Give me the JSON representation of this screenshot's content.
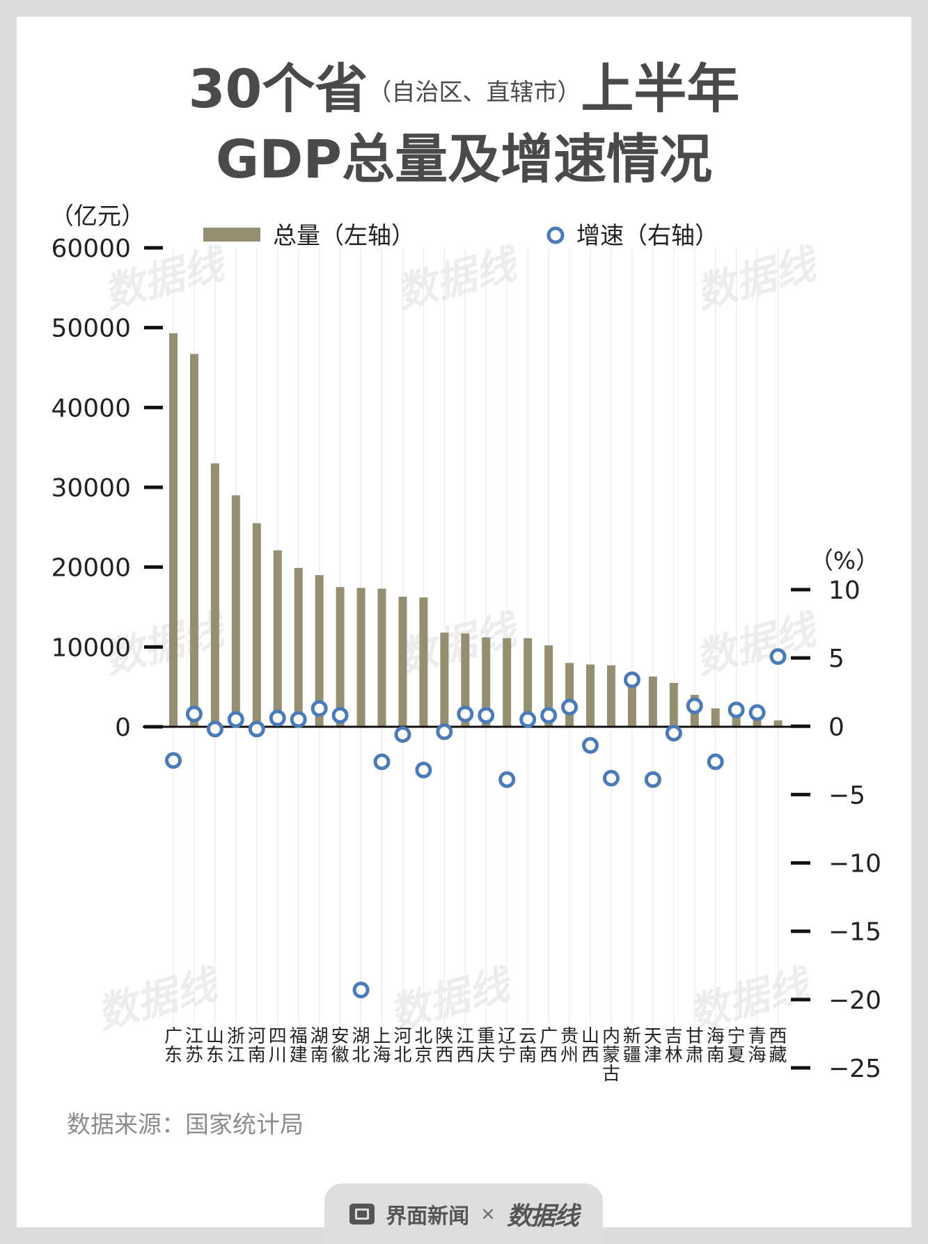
{
  "title": {
    "line1_main": "30个省",
    "line1_sub": "（自治区、直辖市）",
    "line1_tail": "上半年",
    "line2": "GDP总量及增速情况"
  },
  "source": "数据来源：国家统计局",
  "footer": {
    "brand1": "界面新闻",
    "times": "×",
    "brand2": "数据线"
  },
  "watermark": "数据线",
  "colors": {
    "bar": "#958f72",
    "dot": "#4a7ab8",
    "grid": "#e6e6e6",
    "axis": "#111111"
  },
  "chart_data": {
    "type": "bar+scatter",
    "categories": [
      "广东",
      "江苏",
      "山东",
      "浙江",
      "河南",
      "四川",
      "福建",
      "湖南",
      "安徽",
      "湖北",
      "上海",
      "河北",
      "北京",
      "陕西",
      "江西",
      "重庆",
      "辽宁",
      "云南",
      "广西",
      "贵州",
      "山西",
      "内蒙古",
      "新疆",
      "天津",
      "吉林",
      "甘肃",
      "海南",
      "宁夏",
      "青海",
      "西藏"
    ],
    "series": [
      {
        "name": "总量（左轴）",
        "axis": "left",
        "unit": "亿元",
        "values": [
          49300,
          46700,
          33000,
          29000,
          25500,
          22100,
          19900,
          19000,
          17500,
          17400,
          17300,
          16300,
          16200,
          11800,
          11700,
          11200,
          11100,
          11100,
          10200,
          8000,
          7800,
          7700,
          6400,
          6300,
          5500,
          4000,
          2300,
          1900,
          1800,
          800
        ]
      },
      {
        "name": "增速（右轴）",
        "axis": "right",
        "unit": "%",
        "values": [
          -2.5,
          0.9,
          -0.2,
          0.5,
          -0.2,
          0.6,
          0.5,
          1.3,
          0.8,
          -19.3,
          -2.6,
          -0.6,
          -3.2,
          -0.4,
          0.9,
          0.8,
          -3.9,
          0.5,
          0.8,
          1.4,
          -1.4,
          -3.8,
          3.4,
          -3.9,
          -0.5,
          1.5,
          -2.6,
          1.2,
          1.0,
          5.1
        ]
      }
    ],
    "left_axis": {
      "unit_label": "（亿元）",
      "ylim": [
        0,
        60000
      ],
      "ticks": [
        0,
        10000,
        20000,
        30000,
        40000,
        50000,
        60000
      ]
    },
    "right_axis": {
      "unit_label": "（%）",
      "ylim": [
        -25,
        10
      ],
      "ticks": [
        10,
        5,
        0,
        -5,
        -10,
        -15,
        -20,
        -25
      ]
    },
    "legend": {
      "bar_label": "总量（左轴）",
      "dot_label": "增速（右轴）",
      "placement": "top"
    }
  }
}
